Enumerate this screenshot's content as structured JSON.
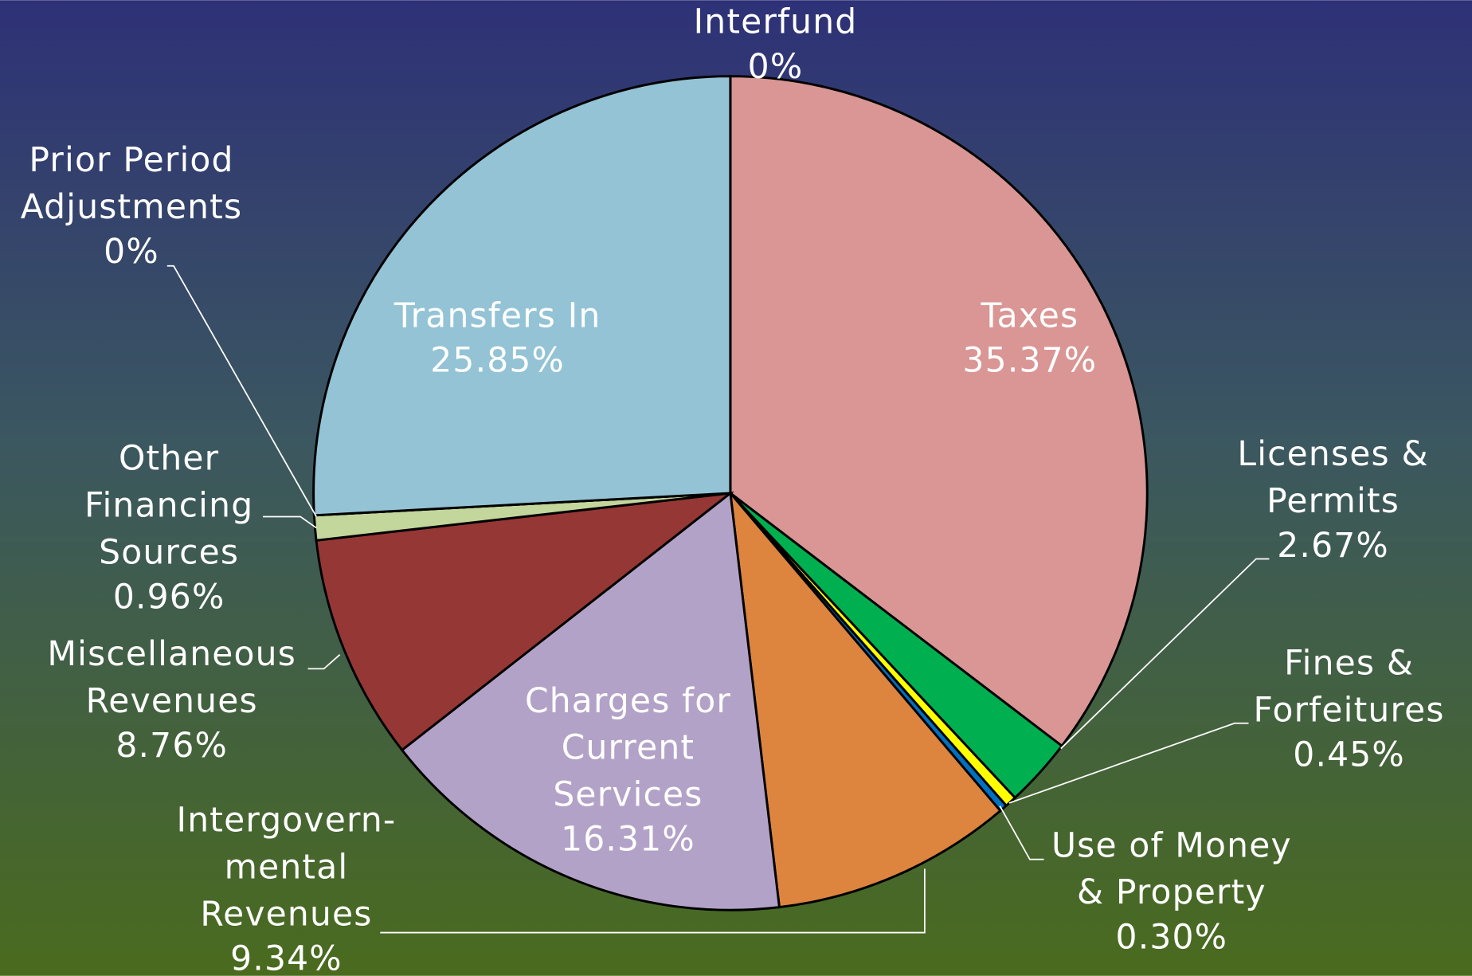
{
  "chart_data": {
    "type": "pie",
    "categories": [
      "Taxes",
      "Licenses &\nPermits",
      "Fines &\nForfeitures",
      "Use of Money\n& Property",
      "Intergovern-\nmental\nRevenues",
      "Charges for\nCurrent\nServices",
      "Miscellaneous\nRevenues",
      "Other\nFinancing\nSources",
      "Prior Period\nAdjustments",
      "Transfers In",
      "Interfund"
    ],
    "values": [
      35.37,
      2.67,
      0.45,
      0.3,
      9.34,
      16.31,
      8.76,
      0.96,
      0,
      25.85,
      0
    ],
    "value_labels": [
      "35.37%",
      "2.67%",
      "0.45%",
      "0.30%",
      "9.34%",
      "16.31%",
      "8.76%",
      "0.96%",
      "0%",
      "25.85%",
      "0%"
    ],
    "colors": [
      "#d99694",
      "#00b050",
      "#ffff00",
      "#0070c0",
      "#dd843f",
      "#b3a2c7",
      "#953735",
      "#c3d69b",
      "#9bbb59",
      "#93c3d5",
      "#4f81bd"
    ]
  }
}
